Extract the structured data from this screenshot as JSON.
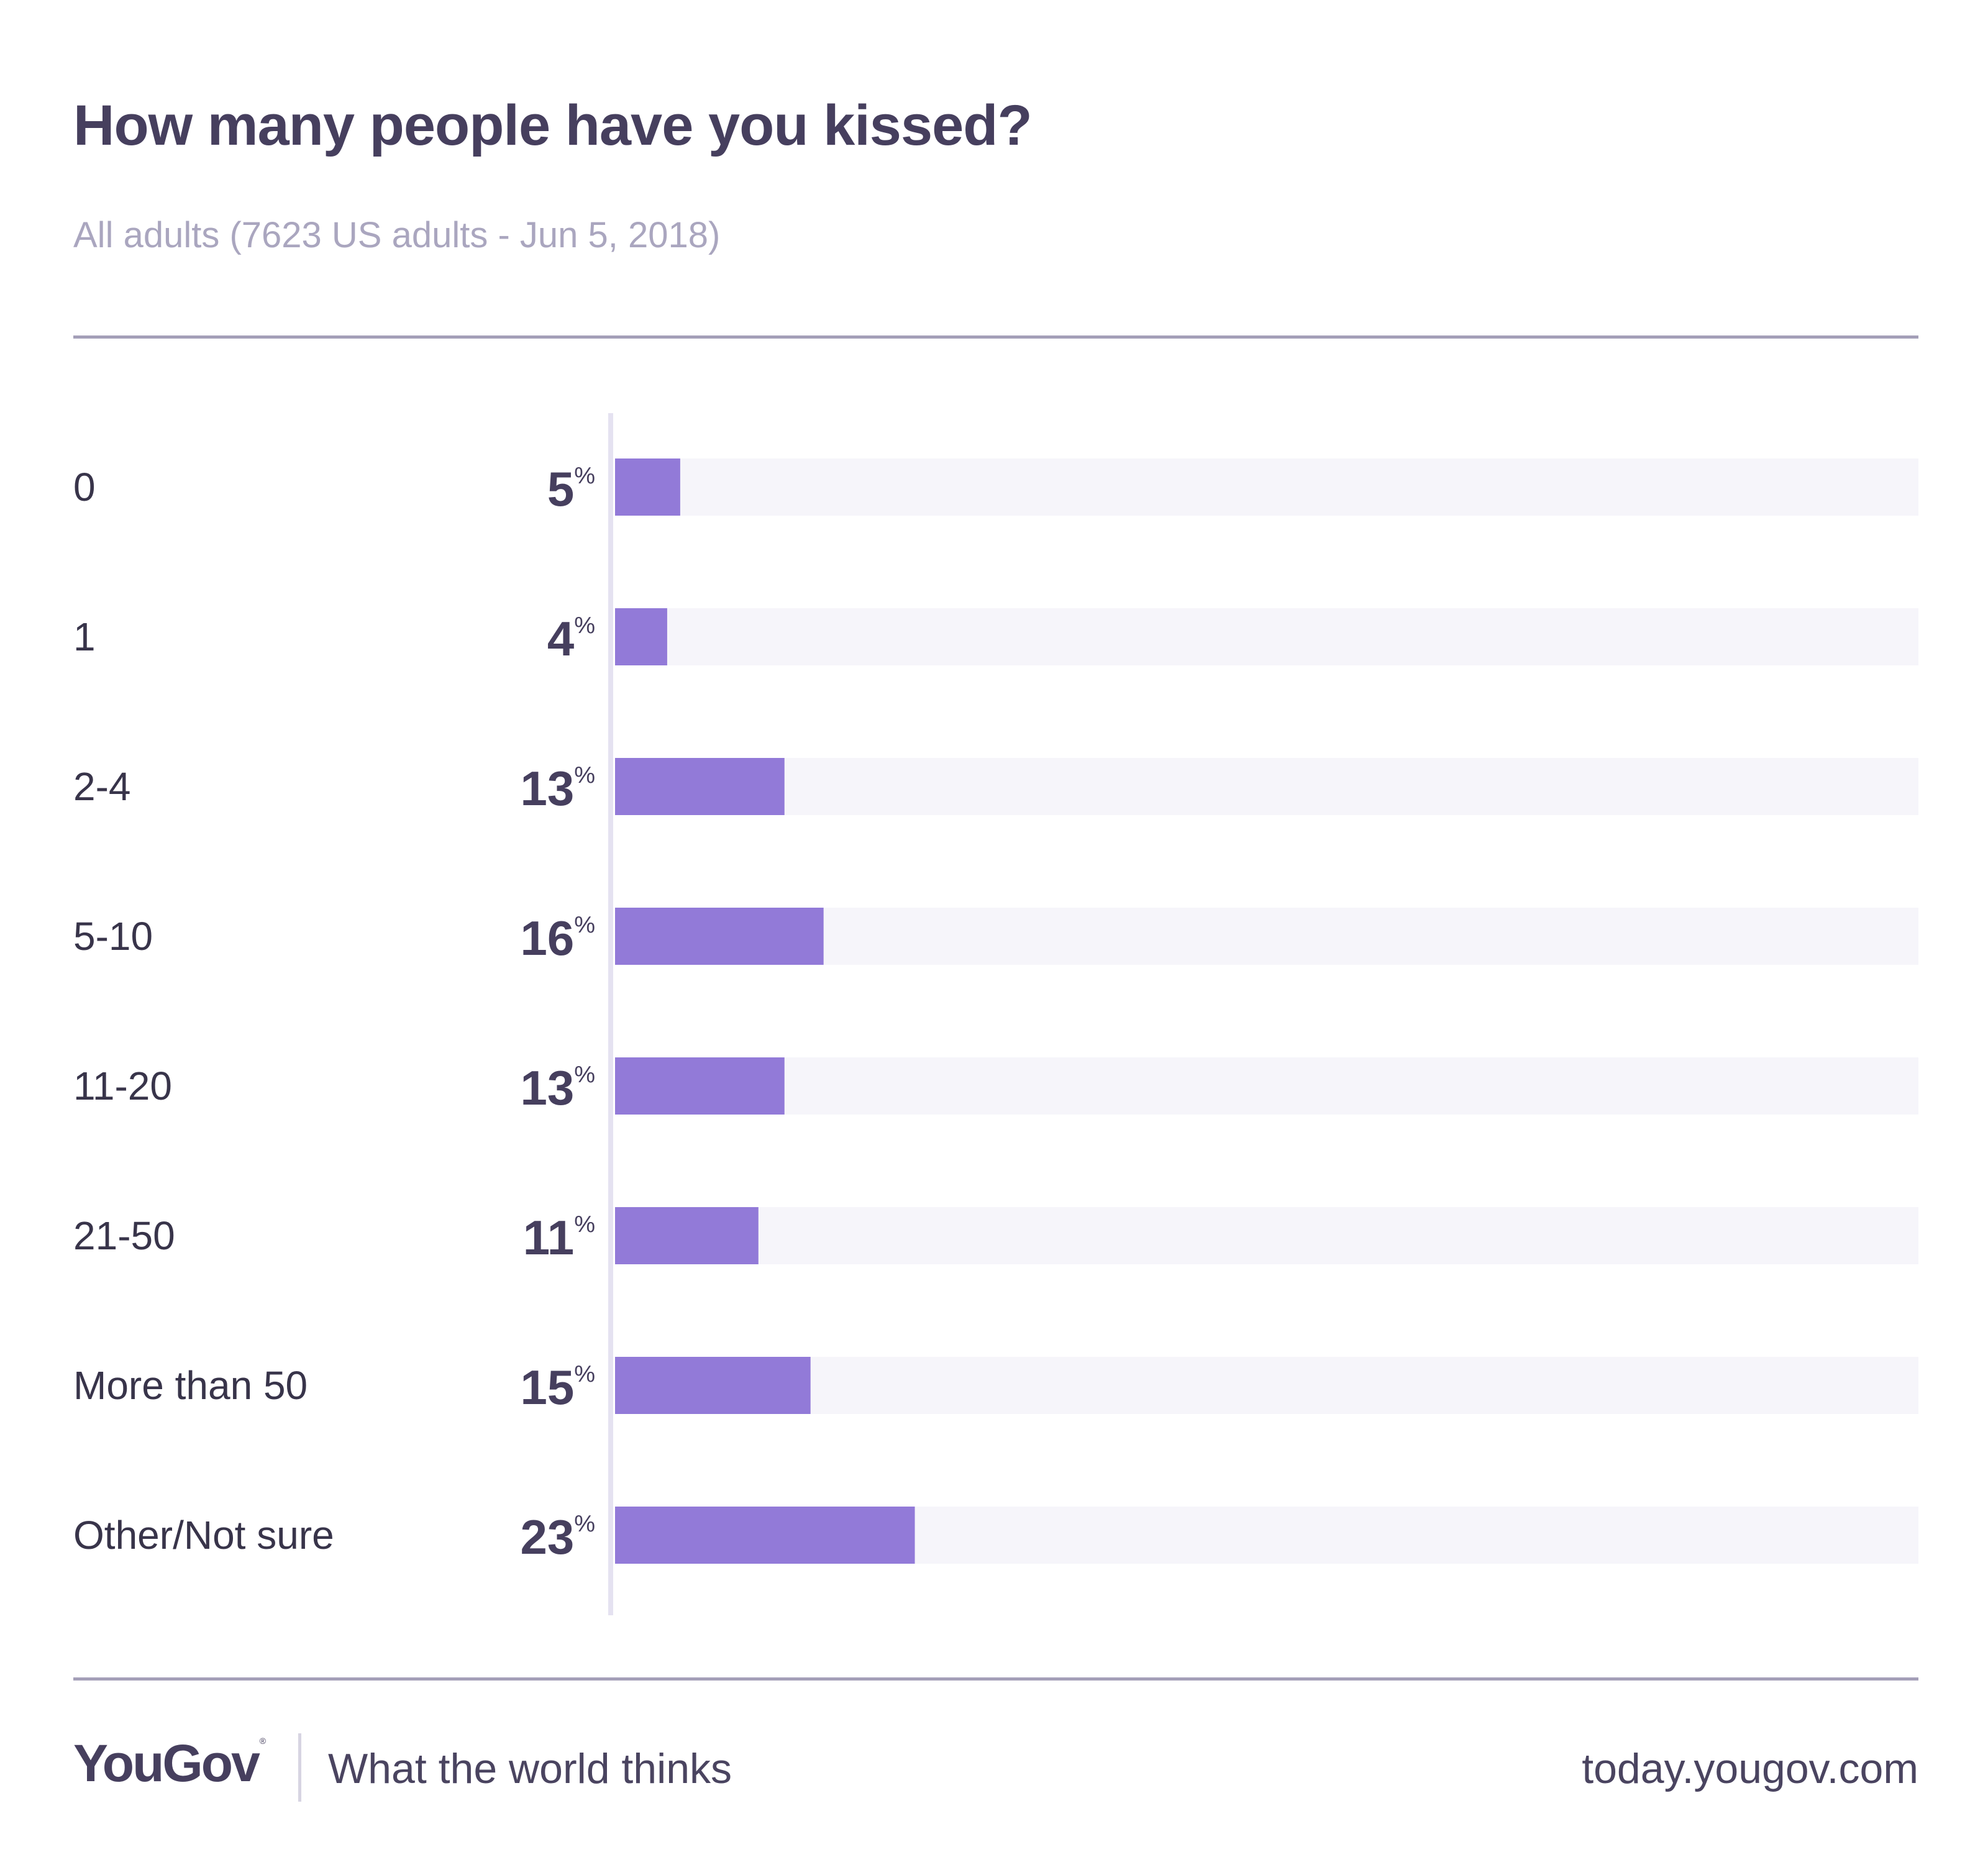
{
  "header": {
    "title": "How many people have you kissed?",
    "subtitle": "All adults (7623 US adults - Jun 5, 2018)"
  },
  "footer": {
    "logo": "YouGov",
    "logo_mark": "®",
    "tagline": "What the world thinks",
    "url": "today.yougov.com"
  },
  "colors": {
    "bar": "#927ad8",
    "track": "#f6f5fa",
    "axis": "#e5e2f1",
    "label": "#38344a",
    "value": "#463f5e"
  },
  "chart_data": {
    "type": "bar",
    "orientation": "horizontal",
    "categories": [
      "0",
      "1",
      "2-4",
      "5-10",
      "11-20",
      "21-50",
      "More than 50",
      "Other/Not sure"
    ],
    "values": [
      5,
      4,
      13,
      16,
      13,
      11,
      15,
      23
    ],
    "value_suffix": "%",
    "xlim": [
      0,
      100
    ],
    "grid": false,
    "legend": "none"
  }
}
